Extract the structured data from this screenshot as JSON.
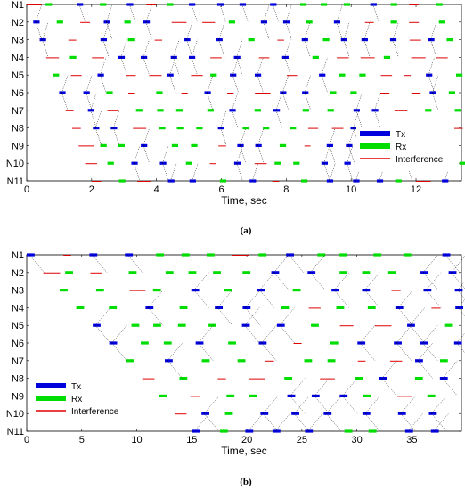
{
  "chart_data": [
    {
      "type": "timeline",
      "panel": "(a)",
      "nodes": [
        "N1",
        "N2",
        "N3",
        "N4",
        "N5",
        "N6",
        "N7",
        "N8",
        "N9",
        "N10",
        "N11"
      ],
      "xlabel": "Time, sec",
      "xlim": [
        0,
        13.4
      ],
      "xticks": [
        0,
        2,
        4,
        6,
        8,
        10,
        12
      ],
      "legend": {
        "items": [
          "Tx",
          "Rx",
          "Interference"
        ],
        "position": "bottom-right"
      },
      "colors": {
        "tx": "#0000dd",
        "rx": "#00dd00",
        "interference": "#dd0000",
        "link": "#000000"
      },
      "slot_period": 1.0,
      "node_offset": 0.2
    },
    {
      "type": "timeline",
      "panel": "(b)",
      "nodes": [
        "N1",
        "N2",
        "N3",
        "N4",
        "N5",
        "N6",
        "N7",
        "N8",
        "N9",
        "N10",
        "N11"
      ],
      "xlabel": "Time, sec",
      "xlim": [
        0,
        39.5
      ],
      "xticks": [
        0,
        5,
        10,
        15,
        20,
        25,
        30,
        35
      ],
      "legend": {
        "items": [
          "Tx",
          "Rx",
          "Interference"
        ],
        "position": "bottom-left"
      },
      "colors": {
        "tx": "#0000dd",
        "rx": "#00dd00",
        "interference": "#dd0000",
        "link": "#000000"
      },
      "slot_period": 3.6,
      "node_offset": 1.5
    }
  ],
  "captions": [
    "(a)",
    "(b)"
  ]
}
